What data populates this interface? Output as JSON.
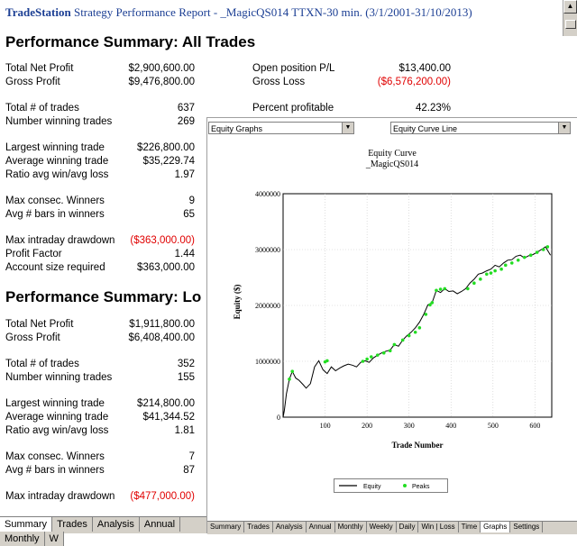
{
  "report": {
    "title_app": "TradeStation",
    "title_rest": "Strategy Performance Report - _MagicQS014 TTXN-30 min. (3/1/2001-31/10/2013)",
    "all_trades": {
      "heading": "Performance Summary:  All Trades",
      "net_profit_label": "Total Net Profit",
      "net_profit": "$2,900,600.00",
      "open_pl_label": "Open position P/L",
      "open_pl": "$13,400.00",
      "gross_profit_label": "Gross Profit",
      "gross_profit": "$9,476,800.00",
      "gross_loss_label": "Gross Loss",
      "gross_loss": "($6,576,200.00)",
      "total_trades_label": "Total # of trades",
      "total_trades": "637",
      "percent_profitable_label": "Percent profitable",
      "percent_profitable": "42.23%",
      "winning_trades_label": "Number winning trades",
      "winning_trades": "269",
      "largest_win_label": "Largest winning trade",
      "largest_win": "$226,800.00",
      "avg_win_label": "Average winning trade",
      "avg_win": "$35,229.74",
      "ratio_label": "Ratio avg win/avg loss",
      "ratio": "1.97",
      "max_consec_label": "Max consec. Winners",
      "max_consec": "9",
      "avg_bars_label": "Avg # bars in winners",
      "avg_bars": "65",
      "max_dd_label": "Max intraday drawdown",
      "max_dd": "($363,000.00)",
      "profit_factor_label": "Profit Factor",
      "profit_factor": "1.44",
      "account_size_label": "Account size required",
      "account_size": "$363,000.00"
    },
    "long_trades": {
      "heading": "Performance Summary:  Lo",
      "net_profit_label": "Total Net Profit",
      "net_profit": "$1,911,800.00",
      "gross_profit_label": "Gross Profit",
      "gross_profit": "$6,408,400.00",
      "total_trades_label": "Total # of trades",
      "total_trades": "352",
      "winning_trades_label": "Number winning trades",
      "winning_trades": "155",
      "largest_win_label": "Largest winning trade",
      "largest_win": "$214,800.00",
      "avg_win_label": "Average winning trade",
      "avg_win": "$41,344.52",
      "ratio_label": "Ratio avg win/avg loss",
      "ratio": "1.81",
      "max_consec_label": "Max consec. Winners",
      "max_consec": "7",
      "avg_bars_label": "Avg # bars in winners",
      "avg_bars": "87",
      "max_dd_label": "Max intraday drawdown",
      "max_dd": "($477,000.00)"
    },
    "tabs": [
      "Summary",
      "Trades",
      "Analysis",
      "Annual",
      "Monthly",
      "W"
    ]
  },
  "graph_window": {
    "select_left": "Equity Graphs",
    "select_right": "Equity Curve Line",
    "tabs": [
      "Summary",
      "Trades",
      "Analysis",
      "Annual",
      "Monthly",
      "Weekly",
      "Daily",
      "Win | Loss",
      "Time",
      "Graphs",
      "Settings"
    ]
  },
  "chart_data": {
    "type": "line",
    "title": "Equity Curve",
    "subtitle": "_MagicQS014",
    "xlabel": "Trade Number",
    "ylabel": "Equity ($)",
    "xlim": [
      0,
      640
    ],
    "ylim": [
      0,
      4000000
    ],
    "x_ticks": [
      "100",
      "200",
      "300",
      "400",
      "500",
      "600"
    ],
    "y_ticks": [
      "0",
      "1000000",
      "2000000",
      "3000000",
      "4000000"
    ],
    "grid": true,
    "legend": {
      "position": "bottom",
      "entries": [
        "Equity",
        "Peaks"
      ]
    },
    "colors": {
      "equity": "#000000",
      "peaks": "#22dd22"
    },
    "series": [
      {
        "name": "Equity",
        "x": [
          0,
          3,
          8,
          15,
          22,
          30,
          38,
          48,
          55,
          65,
          75,
          85,
          95,
          105,
          115,
          125,
          135,
          145,
          155,
          165,
          175,
          185,
          195,
          205,
          215,
          225,
          235,
          245,
          255,
          265,
          275,
          285,
          295,
          305,
          315,
          325,
          335,
          345,
          355,
          365,
          375,
          385,
          395,
          405,
          415,
          425,
          435,
          445,
          455,
          465,
          475,
          485,
          495,
          505,
          515,
          525,
          535,
          545,
          555,
          565,
          575,
          585,
          595,
          605,
          615,
          625,
          637
        ],
        "values": [
          0,
          120000,
          420000,
          680000,
          820000,
          700000,
          660000,
          580000,
          520000,
          600000,
          900000,
          1010000,
          850000,
          780000,
          900000,
          830000,
          880000,
          920000,
          950000,
          930000,
          900000,
          980000,
          1010000,
          980000,
          1060000,
          1110000,
          1150000,
          1180000,
          1200000,
          1300000,
          1270000,
          1380000,
          1460000,
          1520000,
          1600000,
          1700000,
          1840000,
          2010000,
          2050000,
          2270000,
          2230000,
          2300000,
          2250000,
          2260000,
          2210000,
          2250000,
          2300000,
          2400000,
          2470000,
          2560000,
          2580000,
          2620000,
          2650000,
          2720000,
          2690000,
          2760000,
          2810000,
          2820000,
          2880000,
          2900000,
          2850000,
          2890000,
          2910000,
          2950000,
          3000000,
          3050000,
          2900600
        ]
      },
      {
        "name": "Peaks",
        "x": [
          15,
          22,
          100,
          105,
          190,
          200,
          210,
          225,
          240,
          255,
          265,
          285,
          300,
          315,
          325,
          340,
          350,
          355,
          365,
          375,
          385,
          440,
          455,
          470,
          485,
          495,
          505,
          520,
          530,
          545,
          560,
          575,
          590,
          605,
          620,
          630
        ],
        "values": [
          680000,
          820000,
          990000,
          1010000,
          1000000,
          1040000,
          1080000,
          1110000,
          1150000,
          1190000,
          1300000,
          1380000,
          1460000,
          1520000,
          1600000,
          1840000,
          2010000,
          2050000,
          2270000,
          2290000,
          2300000,
          2300000,
          2400000,
          2470000,
          2560000,
          2580000,
          2620000,
          2650000,
          2720000,
          2760000,
          2810000,
          2860000,
          2900000,
          2950000,
          3000000,
          3050000
        ]
      }
    ]
  }
}
